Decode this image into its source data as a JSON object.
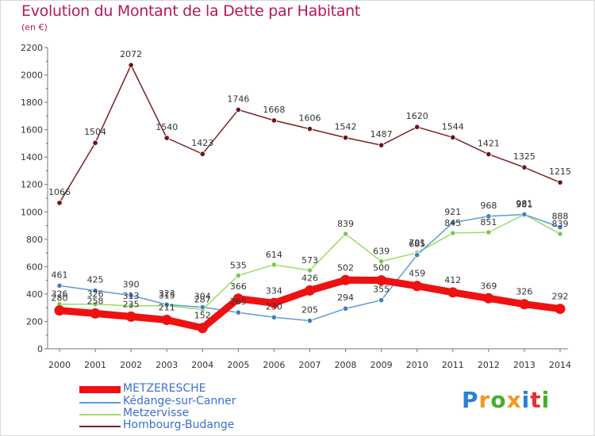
{
  "header": {
    "title": "Evolution du Montant de la Dette par Habitant",
    "subtitle": "(en €)"
  },
  "logo": {
    "text": "Proxiti"
  },
  "chart_data": {
    "type": "line",
    "title": "Evolution du Montant de la Dette par Habitant",
    "subtitle": "(en €)",
    "xlabel": "",
    "ylabel": "",
    "x": [
      "2000",
      "2001",
      "2002",
      "2003",
      "2004",
      "2005",
      "2006",
      "2007",
      "2008",
      "2009",
      "2010",
      "2011",
      "2012",
      "2013",
      "2014"
    ],
    "yticks": [
      "0",
      "200",
      "400",
      "600",
      "800",
      "1000",
      "1200",
      "1400",
      "1600",
      "1800",
      "2000",
      "2200"
    ],
    "ylim": [
      0,
      2200
    ],
    "grid": false,
    "legend_position": "bottom-left",
    "series": [
      {
        "name": "METZERESCHE",
        "color": "#ee1111",
        "values": [
          280,
          258,
          235,
          211,
          152,
          366,
          334,
          426,
          502,
          500,
          459,
          412,
          369,
          326,
          292
        ]
      },
      {
        "name": "Kédange-sur-Canner",
        "color": "#5b9bd5",
        "values": [
          461,
          425,
          390,
          323,
          304,
          265,
          230,
          205,
          294,
          355,
          685,
          921,
          968,
          981,
          888
        ]
      },
      {
        "name": "Metzervisse",
        "color": "#99dd66",
        "values": [
          326,
          326,
          313,
          315,
          287,
          535,
          614,
          573,
          839,
          639,
          701,
          845,
          851,
          981,
          839
        ]
      },
      {
        "name": "Hombourg-Budange",
        "color": "#772222",
        "values": [
          1066,
          1504,
          2072,
          1540,
          1423,
          1746,
          1668,
          1606,
          1542,
          1487,
          1620,
          1544,
          1421,
          1325,
          1215
        ]
      }
    ],
    "data_labels": {
      "METZERESCHE": [
        "280",
        "258",
        "235",
        "211",
        "152",
        "366",
        "334",
        "426",
        "502",
        "500",
        "459",
        "412",
        "369",
        "326",
        "292"
      ],
      "Kédange-sur-Canner": [
        "461",
        "425",
        "390",
        "323",
        "304",
        "265",
        "230",
        "205",
        "294",
        "355",
        "685",
        "921",
        "968",
        "981",
        "888"
      ],
      "Metzervisse": [
        "326",
        "326",
        "313",
        "315",
        "287",
        "535",
        "614",
        "573",
        "839",
        "639",
        "701",
        "845",
        "851",
        "981",
        "839"
      ],
      "Hombourg-Budange": [
        "1066",
        "1504",
        "2072",
        "1540",
        "1423",
        "1746",
        "1668",
        "1606",
        "1542",
        "1487",
        "1620",
        "1544",
        "1421",
        "1325",
        "1215"
      ]
    }
  }
}
